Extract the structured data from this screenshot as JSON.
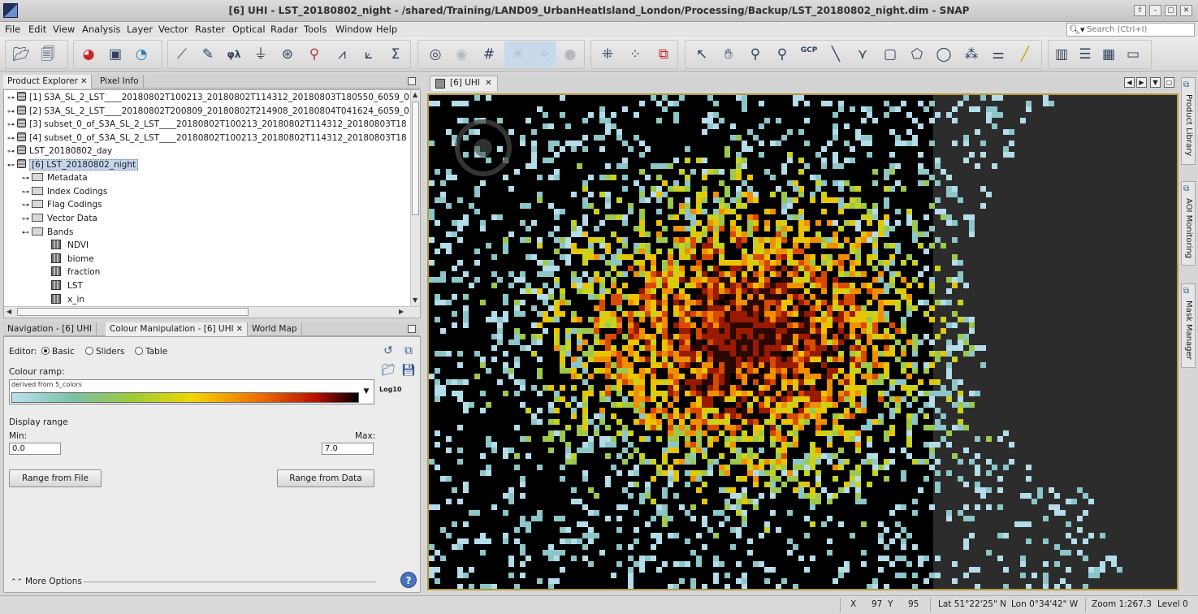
{
  "window": {
    "title": "[6] UHI - LST_20180802_night - /shared/Training/LAND09_UrbanHeatIsland_London/Processing/Backup/LST_20180802_night.dim - SNAP",
    "controls": [
      "⇧",
      "–",
      "▢",
      "✕"
    ]
  },
  "menu": [
    "File",
    "Edit",
    "View",
    "Analysis",
    "Layer",
    "Vector",
    "Raster",
    "Optical",
    "Radar",
    "Tools",
    "Window",
    "Help"
  ],
  "search": {
    "placeholder": "Search (Ctrl+I)"
  },
  "toolbar": {
    "gcp_label": "GCP",
    "spectrum_label": "φλ"
  },
  "product_explorer": {
    "tabs": [
      "Product Explorer",
      "Pixel Info"
    ],
    "products": [
      "[1] S3A_SL_2_LST____20180802T100213_20180802T114312_20180803T180550_6059_0",
      "[2] S3A_SL_2_LST____20180802T200809_20180802T214908_20180804T041624_6059_0",
      "[3] subset_0_of_S3A_SL_2_LST____20180802T100213_20180802T114312_20180803T18",
      "[4] subset_0_of_S3A_SL_2_LST____20180802T100213_20180802T114312_20180803T18",
      "LST_20180802_day",
      "[6] LST_20180802_night"
    ],
    "folders": [
      "Metadata",
      "Index Codings",
      "Flag Codings",
      "Vector Data",
      "Bands"
    ],
    "bands": [
      "NDVI",
      "biome",
      "fraction",
      "LST",
      "x_in"
    ]
  },
  "colour_panel": {
    "tabs": [
      "Navigation - [6] UHI",
      "Colour Manipulation - [6] UHI",
      "World Map"
    ],
    "editor_label": "Editor:",
    "editor_options": [
      "Basic",
      "Sliders",
      "Table"
    ],
    "editor_selected": "Basic",
    "ramp_label": "Colour ramp:",
    "ramp_name": "derived from 5_colors",
    "log_label": "Log10",
    "display_range_label": "Display range",
    "min_label": "Min:",
    "max_label": "Max:",
    "min_value": "0.0",
    "max_value": "7.0",
    "range_file_button": "Range from File",
    "range_data_button": "Range from Data",
    "more_options": "More Options"
  },
  "image_view": {
    "tab_label": "[6] UHI"
  },
  "right_dock": [
    "Product Library",
    "AOI Monitoring",
    "Mask Manager"
  ],
  "status": {
    "x_label": "X",
    "x_value": "97",
    "y_label": "Y",
    "y_value": "95",
    "lat": "Lat 51°22'25\" N",
    "lon": "Lon 0°34'42\" W",
    "zoom": "Zoom 1:267.3",
    "level": "Level 0"
  },
  "colors": {
    "ramp_low": "#b7e2ee",
    "ramp_mid": "#f2d600",
    "ramp_high": "#000000",
    "accent": "#c6d5ea"
  }
}
